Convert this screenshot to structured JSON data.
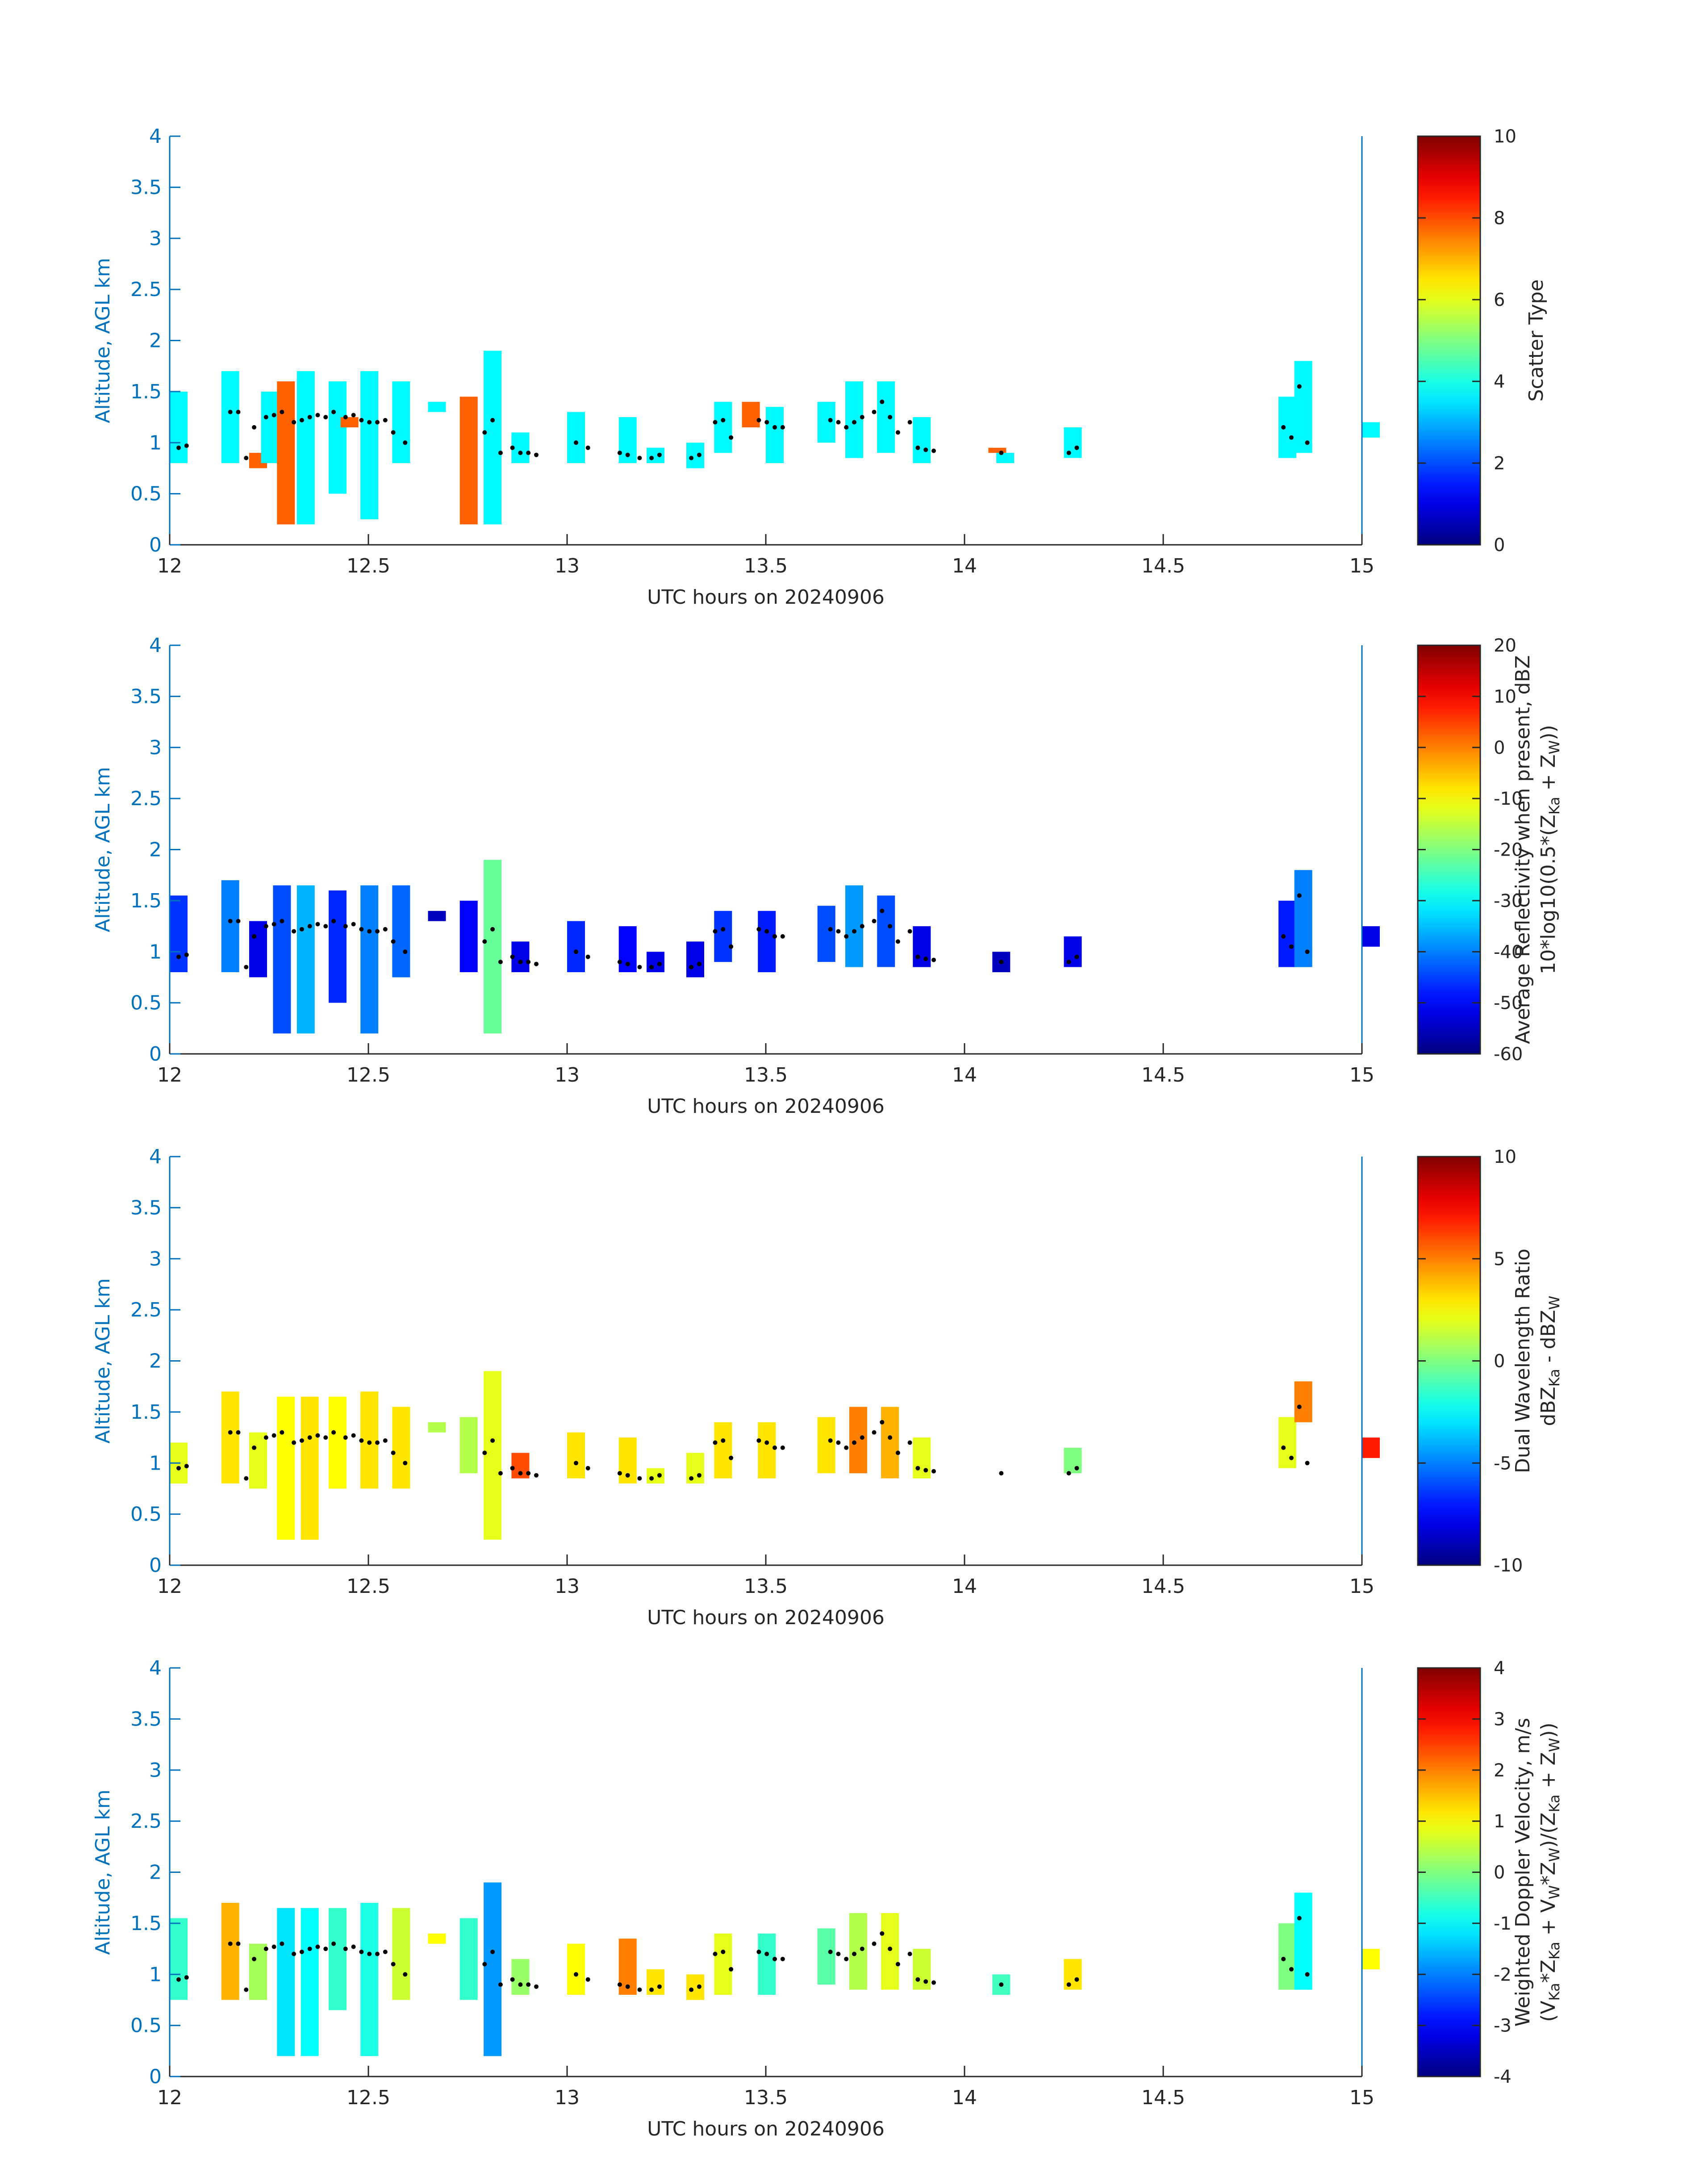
{
  "figure": {
    "background": "#ffffff",
    "axis_color": "#0072bd",
    "text_color": "#262626",
    "colormap": "jet",
    "marker_color": "#000000"
  },
  "chart_data": [
    {
      "type": "heatmap",
      "title": "",
      "xlabel": "UTC hours on 20240906",
      "ylabel": "Altitude, AGL km",
      "xlim": [
        12,
        15
      ],
      "ylim": [
        0,
        4
      ],
      "xticks": [
        "12",
        "12.5",
        "13",
        "13.5",
        "14",
        "14.5",
        "15"
      ],
      "yticks": [
        "0",
        "0.5",
        "1",
        "1.5",
        "2",
        "2.5",
        "3",
        "3.5",
        "4"
      ],
      "colorbar": {
        "label_lines": [
          "Scatter Type"
        ],
        "range": [
          0,
          10
        ],
        "ticks": [
          "0",
          "2",
          "4",
          "6",
          "8",
          "10"
        ]
      },
      "columns": [
        {
          "x": 12.0,
          "y0": 0.8,
          "y1": 1.5,
          "v": 3.7
        },
        {
          "x": 12.13,
          "y0": 0.8,
          "y1": 1.7,
          "v": 3.7
        },
        {
          "x": 12.2,
          "y0": 0.75,
          "y1": 0.9,
          "v": 7.8
        },
        {
          "x": 12.23,
          "y0": 0.8,
          "y1": 1.5,
          "v": 3.7
        },
        {
          "x": 12.27,
          "y0": 0.2,
          "y1": 1.6,
          "v": 7.8
        },
        {
          "x": 12.32,
          "y0": 0.2,
          "y1": 1.7,
          "v": 3.7
        },
        {
          "x": 12.4,
          "y0": 0.5,
          "y1": 1.6,
          "v": 3.7
        },
        {
          "x": 12.43,
          "y0": 1.15,
          "y1": 1.25,
          "v": 7.8
        },
        {
          "x": 12.48,
          "y0": 0.25,
          "y1": 1.7,
          "v": 3.7
        },
        {
          "x": 12.56,
          "y0": 0.8,
          "y1": 1.6,
          "v": 3.7
        },
        {
          "x": 12.65,
          "y0": 1.3,
          "y1": 1.4,
          "v": 3.7
        },
        {
          "x": 12.73,
          "y0": 0.2,
          "y1": 1.45,
          "v": 7.8
        },
        {
          "x": 12.79,
          "y0": 0.2,
          "y1": 1.9,
          "v": 3.7
        },
        {
          "x": 12.86,
          "y0": 0.8,
          "y1": 1.1,
          "v": 3.7
        },
        {
          "x": 13.0,
          "y0": 0.8,
          "y1": 1.3,
          "v": 3.7
        },
        {
          "x": 13.13,
          "y0": 0.8,
          "y1": 1.25,
          "v": 3.7
        },
        {
          "x": 13.2,
          "y0": 0.8,
          "y1": 0.95,
          "v": 3.7
        },
        {
          "x": 13.3,
          "y0": 0.75,
          "y1": 1.0,
          "v": 3.7
        },
        {
          "x": 13.37,
          "y0": 0.9,
          "y1": 1.4,
          "v": 3.7
        },
        {
          "x": 13.44,
          "y0": 1.15,
          "y1": 1.4,
          "v": 7.8
        },
        {
          "x": 13.5,
          "y0": 0.8,
          "y1": 1.35,
          "v": 3.7
        },
        {
          "x": 13.63,
          "y0": 1.0,
          "y1": 1.4,
          "v": 3.7
        },
        {
          "x": 13.7,
          "y0": 0.85,
          "y1": 1.6,
          "v": 3.7
        },
        {
          "x": 13.78,
          "y0": 0.9,
          "y1": 1.6,
          "v": 3.7
        },
        {
          "x": 13.87,
          "y0": 0.8,
          "y1": 1.25,
          "v": 3.7
        },
        {
          "x": 14.06,
          "y0": 0.9,
          "y1": 0.95,
          "v": 7.8
        },
        {
          "x": 14.08,
          "y0": 0.8,
          "y1": 0.9,
          "v": 3.7
        },
        {
          "x": 14.25,
          "y0": 0.85,
          "y1": 1.15,
          "v": 3.7
        },
        {
          "x": 14.79,
          "y0": 0.85,
          "y1": 1.45,
          "v": 3.7
        },
        {
          "x": 14.83,
          "y0": 0.9,
          "y1": 1.8,
          "v": 3.7
        },
        {
          "x": 15.0,
          "y0": 1.05,
          "y1": 1.2,
          "v": 3.7
        }
      ]
    },
    {
      "type": "heatmap",
      "title": "",
      "xlabel": "UTC hours on 20240906",
      "ylabel": "Altitude, AGL km",
      "xlim": [
        12,
        15
      ],
      "ylim": [
        0,
        4
      ],
      "xticks": [
        "12",
        "12.5",
        "13",
        "13.5",
        "14",
        "14.5",
        "15"
      ],
      "yticks": [
        "0",
        "0.5",
        "1",
        "1.5",
        "2",
        "2.5",
        "3",
        "3.5",
        "4"
      ],
      "colorbar": {
        "label_lines": [
          "Average Reflectivity when present, dBZ",
          "10*log10(0.5*(Z",
          "Ka",
          " + Z",
          "W",
          "))"
        ],
        "range": [
          -60,
          20
        ],
        "ticks": [
          "-60",
          "-50",
          "-40",
          "-30",
          "-20",
          "-10",
          "0",
          "10",
          "20"
        ]
      },
      "columns": [
        {
          "x": 12.0,
          "y0": 0.8,
          "y1": 1.55,
          "v": -46
        },
        {
          "x": 12.13,
          "y0": 0.8,
          "y1": 1.7,
          "v": -40
        },
        {
          "x": 12.2,
          "y0": 0.75,
          "y1": 1.3,
          "v": -52
        },
        {
          "x": 12.26,
          "y0": 0.2,
          "y1": 1.65,
          "v": -44
        },
        {
          "x": 12.32,
          "y0": 0.2,
          "y1": 1.65,
          "v": -36
        },
        {
          "x": 12.4,
          "y0": 0.5,
          "y1": 1.6,
          "v": -47
        },
        {
          "x": 12.48,
          "y0": 0.2,
          "y1": 1.65,
          "v": -40
        },
        {
          "x": 12.56,
          "y0": 0.75,
          "y1": 1.65,
          "v": -42
        },
        {
          "x": 12.65,
          "y0": 1.3,
          "y1": 1.4,
          "v": -55
        },
        {
          "x": 12.73,
          "y0": 0.8,
          "y1": 1.5,
          "v": -50
        },
        {
          "x": 12.79,
          "y0": 0.2,
          "y1": 1.9,
          "v": -22
        },
        {
          "x": 12.86,
          "y0": 0.8,
          "y1": 1.1,
          "v": -52
        },
        {
          "x": 13.0,
          "y0": 0.8,
          "y1": 1.3,
          "v": -47
        },
        {
          "x": 13.13,
          "y0": 0.8,
          "y1": 1.25,
          "v": -50
        },
        {
          "x": 13.2,
          "y0": 0.8,
          "y1": 1.0,
          "v": -52
        },
        {
          "x": 13.3,
          "y0": 0.75,
          "y1": 1.1,
          "v": -52
        },
        {
          "x": 13.37,
          "y0": 0.9,
          "y1": 1.4,
          "v": -46
        },
        {
          "x": 13.48,
          "y0": 0.8,
          "y1": 1.4,
          "v": -48
        },
        {
          "x": 13.63,
          "y0": 0.9,
          "y1": 1.45,
          "v": -44
        },
        {
          "x": 13.7,
          "y0": 0.85,
          "y1": 1.65,
          "v": -38
        },
        {
          "x": 13.78,
          "y0": 0.85,
          "y1": 1.55,
          "v": -44
        },
        {
          "x": 13.87,
          "y0": 0.85,
          "y1": 1.25,
          "v": -52
        },
        {
          "x": 14.07,
          "y0": 0.8,
          "y1": 1.0,
          "v": -55
        },
        {
          "x": 14.25,
          "y0": 0.85,
          "y1": 1.15,
          "v": -52
        },
        {
          "x": 14.79,
          "y0": 0.85,
          "y1": 1.5,
          "v": -48
        },
        {
          "x": 14.83,
          "y0": 0.85,
          "y1": 1.8,
          "v": -40
        },
        {
          "x": 15.0,
          "y0": 1.05,
          "y1": 1.25,
          "v": -52
        }
      ]
    },
    {
      "type": "heatmap",
      "title": "",
      "xlabel": "UTC hours on 20240906",
      "ylabel": "Altitude, AGL km",
      "xlim": [
        12,
        15
      ],
      "ylim": [
        0,
        4
      ],
      "xticks": [
        "12",
        "12.5",
        "13",
        "13.5",
        "14",
        "14.5",
        "15"
      ],
      "yticks": [
        "0",
        "0.5",
        "1",
        "1.5",
        "2",
        "2.5",
        "3",
        "3.5",
        "4"
      ],
      "colorbar": {
        "label_lines": [
          "Dual Wavelength Ratio",
          "dBZ",
          "Ka",
          " - dBZ",
          "W"
        ],
        "range": [
          -10,
          10
        ],
        "ticks": [
          "-10",
          "-5",
          "0",
          "5",
          "10"
        ]
      },
      "columns": [
        {
          "x": 12.0,
          "y0": 0.8,
          "y1": 1.2,
          "v": 2
        },
        {
          "x": 12.13,
          "y0": 0.8,
          "y1": 1.7,
          "v": 3
        },
        {
          "x": 12.2,
          "y0": 0.75,
          "y1": 1.3,
          "v": 2
        },
        {
          "x": 12.27,
          "y0": 0.25,
          "y1": 1.65,
          "v": 2.5
        },
        {
          "x": 12.33,
          "y0": 0.25,
          "y1": 1.65,
          "v": 3
        },
        {
          "x": 12.4,
          "y0": 0.75,
          "y1": 1.65,
          "v": 2.5
        },
        {
          "x": 12.48,
          "y0": 0.75,
          "y1": 1.7,
          "v": 3
        },
        {
          "x": 12.56,
          "y0": 0.75,
          "y1": 1.55,
          "v": 3
        },
        {
          "x": 12.65,
          "y0": 1.3,
          "y1": 1.4,
          "v": 1
        },
        {
          "x": 12.73,
          "y0": 0.9,
          "y1": 1.45,
          "v": 1
        },
        {
          "x": 12.79,
          "y0": 0.25,
          "y1": 1.9,
          "v": 2
        },
        {
          "x": 12.86,
          "y0": 0.85,
          "y1": 1.1,
          "v": 6
        },
        {
          "x": 13.0,
          "y0": 0.85,
          "y1": 1.3,
          "v": 3
        },
        {
          "x": 13.13,
          "y0": 0.8,
          "y1": 1.25,
          "v": 3
        },
        {
          "x": 13.2,
          "y0": 0.8,
          "y1": 0.95,
          "v": 2
        },
        {
          "x": 13.3,
          "y0": 0.8,
          "y1": 1.1,
          "v": 2
        },
        {
          "x": 13.37,
          "y0": 0.85,
          "y1": 1.4,
          "v": 3
        },
        {
          "x": 13.48,
          "y0": 0.85,
          "y1": 1.4,
          "v": 3
        },
        {
          "x": 13.63,
          "y0": 0.9,
          "y1": 1.45,
          "v": 3
        },
        {
          "x": 13.71,
          "y0": 0.9,
          "y1": 1.55,
          "v": 5
        },
        {
          "x": 13.79,
          "y0": 0.85,
          "y1": 1.55,
          "v": 4
        },
        {
          "x": 13.87,
          "y0": 0.85,
          "y1": 1.25,
          "v": 2
        },
        {
          "x": 14.25,
          "y0": 0.9,
          "y1": 1.15,
          "v": 0
        },
        {
          "x": 14.79,
          "y0": 0.95,
          "y1": 1.45,
          "v": 2
        },
        {
          "x": 14.83,
          "y0": 1.4,
          "y1": 1.8,
          "v": 5
        },
        {
          "x": 15.0,
          "y0": 1.05,
          "y1": 1.25,
          "v": 7
        }
      ]
    },
    {
      "type": "heatmap",
      "title": "",
      "xlabel": "UTC hours on 20240906",
      "ylabel": "Altitude, AGL km",
      "xlim": [
        12,
        15
      ],
      "ylim": [
        0,
        4
      ],
      "xticks": [
        "12",
        "12.5",
        "13",
        "13.5",
        "14",
        "14.5",
        "15"
      ],
      "yticks": [
        "0",
        "0.5",
        "1",
        "1.5",
        "2",
        "2.5",
        "3",
        "3.5",
        "4"
      ],
      "colorbar": {
        "label_lines": [
          "Weighted Doppler Velocity, m/s",
          "(V",
          "Ka",
          "*Z",
          "Ka",
          " + V",
          "W",
          "*Z",
          "W",
          ")/(Z",
          "Ka",
          " + Z",
          "W",
          "))"
        ],
        "range": [
          -4,
          4
        ],
        "ticks": [
          "-4",
          "-3",
          "-2",
          "-1",
          "0",
          "1",
          "2",
          "3",
          "4"
        ]
      },
      "columns": [
        {
          "x": 12.0,
          "y0": 0.75,
          "y1": 1.55,
          "v": -0.6
        },
        {
          "x": 12.13,
          "y0": 0.75,
          "y1": 1.7,
          "v": 1.6
        },
        {
          "x": 12.2,
          "y0": 0.75,
          "y1": 1.3,
          "v": 0.3
        },
        {
          "x": 12.27,
          "y0": 0.2,
          "y1": 1.65,
          "v": -1.2
        },
        {
          "x": 12.33,
          "y0": 0.2,
          "y1": 1.65,
          "v": -1.0
        },
        {
          "x": 12.4,
          "y0": 0.65,
          "y1": 1.65,
          "v": -0.6
        },
        {
          "x": 12.48,
          "y0": 0.2,
          "y1": 1.7,
          "v": -0.8
        },
        {
          "x": 12.56,
          "y0": 0.75,
          "y1": 1.65,
          "v": 0.6
        },
        {
          "x": 12.65,
          "y0": 1.3,
          "y1": 1.4,
          "v": 1.0
        },
        {
          "x": 12.73,
          "y0": 0.75,
          "y1": 1.55,
          "v": -0.6
        },
        {
          "x": 12.79,
          "y0": 0.2,
          "y1": 1.9,
          "v": -1.8
        },
        {
          "x": 12.86,
          "y0": 0.8,
          "y1": 1.15,
          "v": 0.2
        },
        {
          "x": 13.0,
          "y0": 0.8,
          "y1": 1.3,
          "v": 1.0
        },
        {
          "x": 13.13,
          "y0": 0.8,
          "y1": 1.35,
          "v": 2.0
        },
        {
          "x": 13.2,
          "y0": 0.8,
          "y1": 1.05,
          "v": 1.2
        },
        {
          "x": 13.3,
          "y0": 0.75,
          "y1": 1.0,
          "v": 1.2
        },
        {
          "x": 13.37,
          "y0": 0.8,
          "y1": 1.4,
          "v": 0.8
        },
        {
          "x": 13.48,
          "y0": 0.8,
          "y1": 1.4,
          "v": -0.6
        },
        {
          "x": 13.63,
          "y0": 0.9,
          "y1": 1.45,
          "v": -0.3
        },
        {
          "x": 13.71,
          "y0": 0.85,
          "y1": 1.6,
          "v": 0.4
        },
        {
          "x": 13.79,
          "y0": 0.85,
          "y1": 1.6,
          "v": 0.8
        },
        {
          "x": 13.87,
          "y0": 0.85,
          "y1": 1.25,
          "v": 0.6
        },
        {
          "x": 14.07,
          "y0": 0.8,
          "y1": 1.0,
          "v": -0.5
        },
        {
          "x": 14.25,
          "y0": 0.85,
          "y1": 1.15,
          "v": 1.2
        },
        {
          "x": 14.79,
          "y0": 0.85,
          "y1": 1.5,
          "v": 0.0
        },
        {
          "x": 14.83,
          "y0": 0.85,
          "y1": 1.8,
          "v": -1.0
        },
        {
          "x": 15.0,
          "y0": 1.05,
          "y1": 1.25,
          "v": 1.0
        }
      ]
    }
  ],
  "overlay_points": {
    "marker": "black dots",
    "points": [
      {
        "x": 12.0,
        "y": 0.95
      },
      {
        "x": 12.02,
        "y": 0.97
      },
      {
        "x": 12.13,
        "y": 1.3
      },
      {
        "x": 12.15,
        "y": 1.3
      },
      {
        "x": 12.17,
        "y": 0.85
      },
      {
        "x": 12.19,
        "y": 1.15
      },
      {
        "x": 12.22,
        "y": 1.25
      },
      {
        "x": 12.24,
        "y": 1.27
      },
      {
        "x": 12.26,
        "y": 1.3
      },
      {
        "x": 12.29,
        "y": 1.2
      },
      {
        "x": 12.31,
        "y": 1.22
      },
      {
        "x": 12.33,
        "y": 1.25
      },
      {
        "x": 12.35,
        "y": 1.27
      },
      {
        "x": 12.37,
        "y": 1.25
      },
      {
        "x": 12.39,
        "y": 1.3
      },
      {
        "x": 12.42,
        "y": 1.25
      },
      {
        "x": 12.44,
        "y": 1.27
      },
      {
        "x": 12.46,
        "y": 1.22
      },
      {
        "x": 12.48,
        "y": 1.2
      },
      {
        "x": 12.5,
        "y": 1.2
      },
      {
        "x": 12.52,
        "y": 1.22
      },
      {
        "x": 12.54,
        "y": 1.1
      },
      {
        "x": 12.57,
        "y": 1.0
      },
      {
        "x": 12.77,
        "y": 1.1
      },
      {
        "x": 12.79,
        "y": 1.22
      },
      {
        "x": 12.81,
        "y": 0.9
      },
      {
        "x": 12.84,
        "y": 0.95
      },
      {
        "x": 12.86,
        "y": 0.9
      },
      {
        "x": 12.88,
        "y": 0.9
      },
      {
        "x": 12.9,
        "y": 0.88
      },
      {
        "x": 13.0,
        "y": 1.0
      },
      {
        "x": 13.03,
        "y": 0.95
      },
      {
        "x": 13.11,
        "y": 0.9
      },
      {
        "x": 13.13,
        "y": 0.88
      },
      {
        "x": 13.16,
        "y": 0.85
      },
      {
        "x": 13.19,
        "y": 0.85
      },
      {
        "x": 13.21,
        "y": 0.88
      },
      {
        "x": 13.29,
        "y": 0.85
      },
      {
        "x": 13.31,
        "y": 0.88
      },
      {
        "x": 13.35,
        "y": 1.2
      },
      {
        "x": 13.37,
        "y": 1.22
      },
      {
        "x": 13.39,
        "y": 1.05
      },
      {
        "x": 13.46,
        "y": 1.22
      },
      {
        "x": 13.48,
        "y": 1.2
      },
      {
        "x": 13.5,
        "y": 1.15
      },
      {
        "x": 13.52,
        "y": 1.15
      },
      {
        "x": 13.64,
        "y": 1.22
      },
      {
        "x": 13.66,
        "y": 1.2
      },
      {
        "x": 13.68,
        "y": 1.15
      },
      {
        "x": 13.7,
        "y": 1.2
      },
      {
        "x": 13.72,
        "y": 1.25
      },
      {
        "x": 13.75,
        "y": 1.3
      },
      {
        "x": 13.77,
        "y": 1.4
      },
      {
        "x": 13.79,
        "y": 1.25
      },
      {
        "x": 13.81,
        "y": 1.1
      },
      {
        "x": 13.84,
        "y": 1.2
      },
      {
        "x": 13.86,
        "y": 0.95
      },
      {
        "x": 13.88,
        "y": 0.93
      },
      {
        "x": 13.9,
        "y": 0.92
      },
      {
        "x": 14.07,
        "y": 0.9
      },
      {
        "x": 14.24,
        "y": 0.9
      },
      {
        "x": 14.26,
        "y": 0.95
      },
      {
        "x": 14.78,
        "y": 1.15
      },
      {
        "x": 14.8,
        "y": 1.05
      },
      {
        "x": 14.82,
        "y": 1.55
      },
      {
        "x": 14.84,
        "y": 1.0
      }
    ]
  }
}
